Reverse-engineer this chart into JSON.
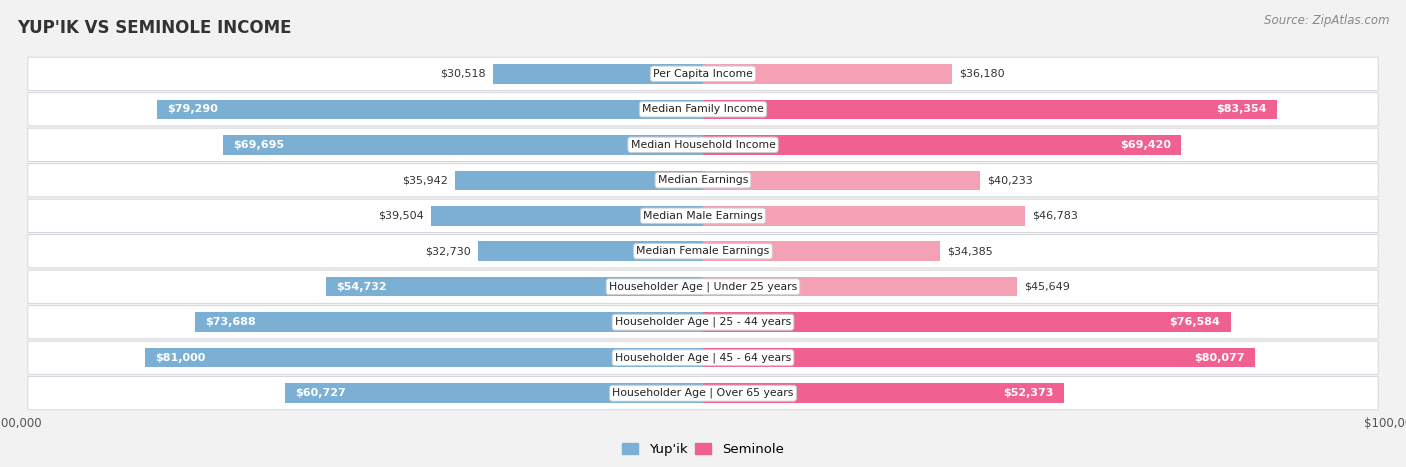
{
  "title": "YUP'IK VS SEMINOLE INCOME",
  "source": "Source: ZipAtlas.com",
  "categories": [
    "Per Capita Income",
    "Median Family Income",
    "Median Household Income",
    "Median Earnings",
    "Median Male Earnings",
    "Median Female Earnings",
    "Householder Age | Under 25 years",
    "Householder Age | 25 - 44 years",
    "Householder Age | 45 - 64 years",
    "Householder Age | Over 65 years"
  ],
  "yupik_values": [
    30518,
    79290,
    69695,
    35942,
    39504,
    32730,
    54732,
    73688,
    81000,
    60727
  ],
  "seminole_values": [
    36180,
    83354,
    69420,
    40233,
    46783,
    34385,
    45649,
    76584,
    80077,
    52373
  ],
  "yupik_labels": [
    "$30,518",
    "$79,290",
    "$69,695",
    "$35,942",
    "$39,504",
    "$32,730",
    "$54,732",
    "$73,688",
    "$81,000",
    "$60,727"
  ],
  "seminole_labels": [
    "$36,180",
    "$83,354",
    "$69,420",
    "$40,233",
    "$46,783",
    "$34,385",
    "$45,649",
    "$76,584",
    "$80,077",
    "$52,373"
  ],
  "max_value": 100000,
  "yupik_color": "#7bafd4",
  "seminole_color": "#f4a0b5",
  "seminole_color_bright": "#f06090",
  "background_color": "#f2f2f2",
  "row_bg_odd": "#e8e8e8",
  "row_bg_even": "#f0f0f0",
  "bar_height": 0.55,
  "label_threshold": 50000,
  "legend_yupik": "Yup'ik",
  "legend_seminole": "Seminole"
}
